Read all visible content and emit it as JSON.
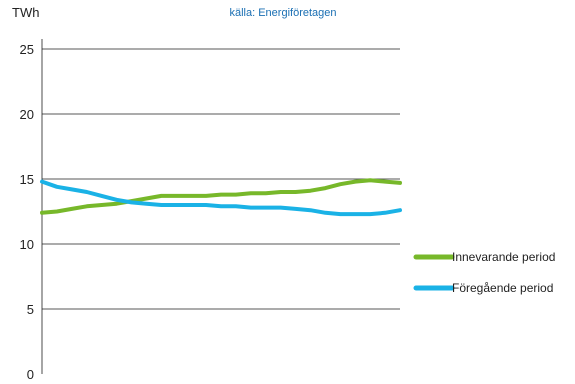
{
  "source_note": "källa: Energiföretagen",
  "chart_data": {
    "type": "line",
    "title": "",
    "xlabel": "",
    "ylabel": "TWh",
    "ylim": [
      0,
      25
    ],
    "yticks": [
      0,
      5,
      10,
      15,
      20,
      25
    ],
    "grid": true,
    "legend_position": "right",
    "series": [
      {
        "name": "Innevarande period",
        "color": "#77b82a",
        "values": [
          12.4,
          12.5,
          12.7,
          12.9,
          13.0,
          13.1,
          13.3,
          13.5,
          13.7,
          13.7,
          13.7,
          13.7,
          13.8,
          13.8,
          13.9,
          13.9,
          14.0,
          14.0,
          14.1,
          14.3,
          14.6,
          14.8,
          14.9,
          14.8,
          14.7
        ]
      },
      {
        "name": "Föregående period",
        "color": "#1ab2e6",
        "values": [
          14.8,
          14.4,
          14.2,
          14.0,
          13.7,
          13.4,
          13.2,
          13.1,
          13.0,
          13.0,
          13.0,
          13.0,
          12.9,
          12.9,
          12.8,
          12.8,
          12.8,
          12.7,
          12.6,
          12.4,
          12.3,
          12.3,
          12.3,
          12.4,
          12.6
        ]
      }
    ]
  }
}
